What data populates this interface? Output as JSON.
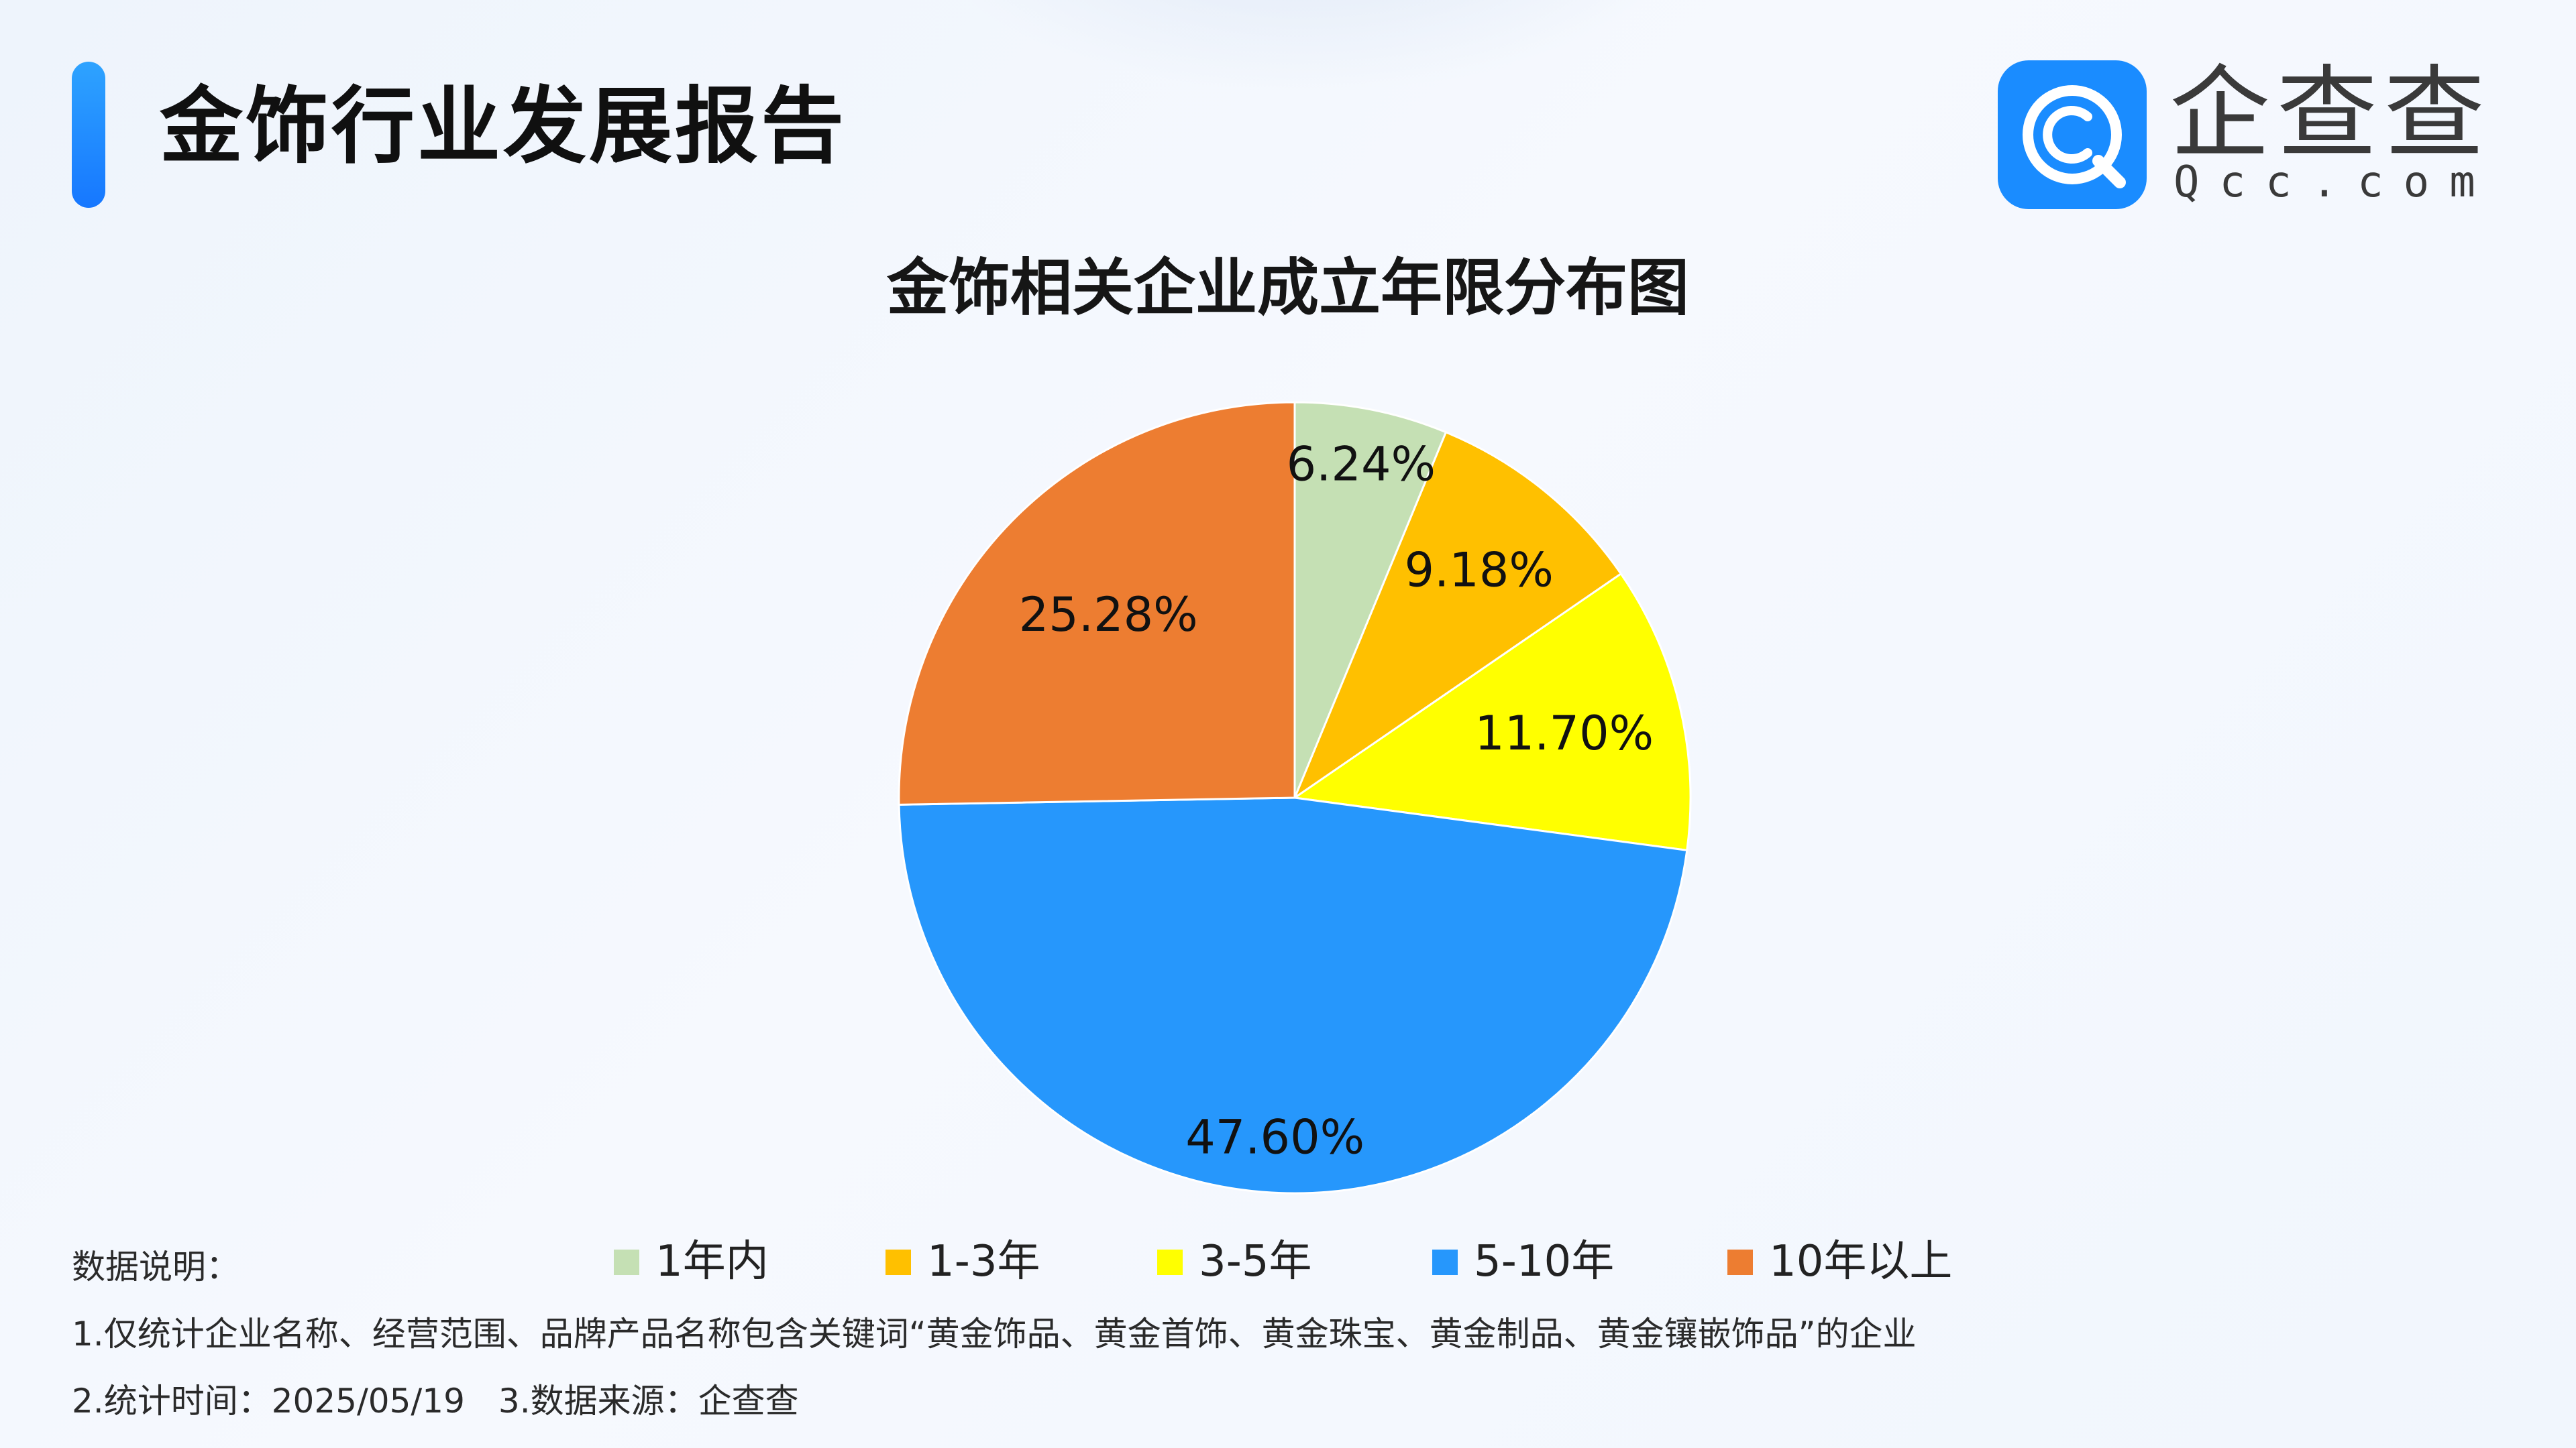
{
  "header": {
    "title": "金饰行业发展报告"
  },
  "brand": {
    "name": "企查查",
    "domain": "Qcc.com",
    "logo_icon": "qcc-logo-icon",
    "logo_color": "#1a8cff"
  },
  "chart_data": {
    "type": "pie",
    "title": "金饰相关企业成立年限分布图",
    "categories": [
      "1年内",
      "1-3年",
      "3-5年",
      "5-10年",
      "10年以上"
    ],
    "values": [
      6.24,
      9.18,
      11.7,
      47.6,
      25.28
    ],
    "labels": [
      "6.24%",
      "9.18%",
      "11.70%",
      "47.60%",
      "25.28%"
    ],
    "unit": "%",
    "colors": [
      "#c5e0b4",
      "#ffc000",
      "#ffff00",
      "#2697fc",
      "#ed7d31"
    ],
    "start": "12 o'clock, clockwise",
    "legend_position": "bottom"
  },
  "notes": {
    "heading": "数据说明：",
    "line1": "1.仅统计企业名称、经营范围、品牌产品名称包含关键词“黄金饰品、黄金首饰、黄金珠宝、黄金制品、黄金镶嵌饰品”的企业",
    "line2": "2.统计时间：2025/05/19　3.数据来源：企查查"
  }
}
